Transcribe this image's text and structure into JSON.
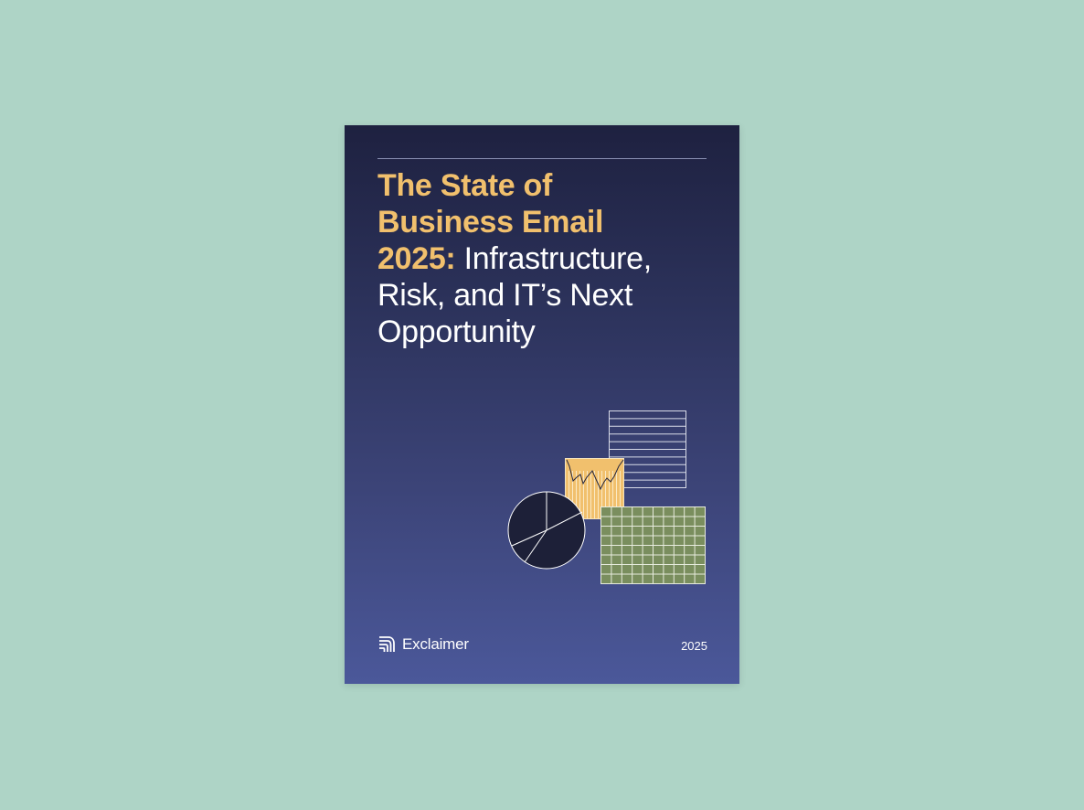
{
  "page": {
    "background": "#aed4c6"
  },
  "cover": {
    "title_highlight_line1": "The State of",
    "title_highlight_line2": "Business Email",
    "title_highlight_line3": "2025:",
    "title_rest_line3": "Infrastructure,",
    "title_rest_line4": "Risk, and IT’s Next",
    "title_rest_line5": "Opportunity",
    "brand_name": "Exclaimer",
    "year": "2025",
    "colors": {
      "highlight": "#f1c06d",
      "gradient_top": "#1e2140",
      "gradient_bottom": "#4b589a",
      "grid_green": "#7a8e5e",
      "pie_navy": "#1d2038"
    },
    "illustration": {
      "icons": [
        "lined-sheet-icon",
        "line-chart-card-icon",
        "pie-chart-icon",
        "spreadsheet-grid-icon"
      ]
    },
    "brand_icon": "exclaimer-logo-icon"
  }
}
